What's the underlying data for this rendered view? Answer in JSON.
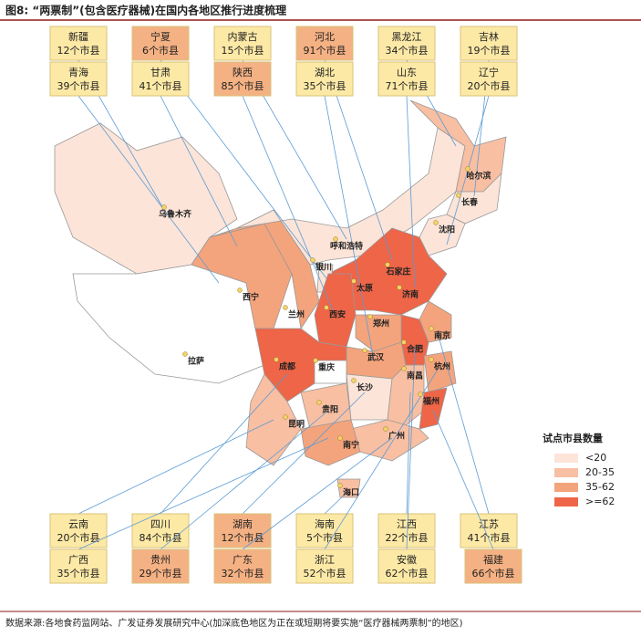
{
  "title": "图8: “两票制”(包含医疗器械)在国内各地区推行进度梳理",
  "top_boxes": [
    [
      {
        "name": "新疆",
        "count": "12个市县",
        "color": "#fde9a6"
      },
      {
        "name": "宁夏",
        "count": "6个市县",
        "color": "#f4b183"
      },
      {
        "name": "内蒙古",
        "count": "15个市县",
        "color": "#fde9a6"
      },
      {
        "name": "河北",
        "count": "91个市县",
        "color": "#f4b183"
      },
      {
        "name": "黑龙江",
        "count": "34个市县",
        "color": "#fde9a6"
      },
      {
        "name": "吉林",
        "count": "19个市县",
        "color": "#fde9a6"
      }
    ],
    [
      {
        "name": "青海",
        "count": "39个市县",
        "color": "#fde9a6"
      },
      {
        "name": "甘肃",
        "count": "41个市县",
        "color": "#fde9a6"
      },
      {
        "name": "陕西",
        "count": "85个市县",
        "color": "#f4b183"
      },
      {
        "name": "湖北",
        "count": "35个市县",
        "color": "#fde9a6"
      },
      {
        "name": "山东",
        "count": "71个市县",
        "color": "#fde9a6"
      },
      {
        "name": "辽宁",
        "count": "20个市县",
        "color": "#fde9a6"
      }
    ]
  ],
  "bottom_boxes": [
    [
      {
        "name": "云南",
        "count": "20个市县",
        "color": "#fde9a6"
      },
      {
        "name": "四川",
        "count": "84个市县",
        "color": "#fde9a6"
      },
      {
        "name": "湖南",
        "count": "12个市县",
        "color": "#f4b183"
      },
      {
        "name": "海南",
        "count": "5个市县",
        "color": "#fde9a6"
      },
      {
        "name": "江西",
        "count": "22个市县",
        "color": "#fde9a6"
      },
      {
        "name": "江苏",
        "count": "41个市县",
        "color": "#fde9a6"
      }
    ],
    [
      {
        "name": "广西",
        "count": "35个市县",
        "color": "#fde9a6"
      },
      {
        "name": "贵州",
        "count": "29个市县",
        "color": "#f4b183"
      },
      {
        "name": "广东",
        "count": "32个市县",
        "color": "#f4b183"
      },
      {
        "name": "浙江",
        "count": "52个市县",
        "color": "#fde9a6"
      },
      {
        "name": "安徽",
        "count": "62个市县",
        "color": "#fde9a6"
      },
      {
        "name": "福建",
        "count": "66个市县",
        "color": "#f4b183"
      }
    ]
  ],
  "cities": [
    "乌鲁木齐",
    "哈尔滨",
    "长春",
    "沈阳",
    "呼和浩特",
    "银川",
    "石家庄",
    "太原",
    "济南",
    "西宁",
    "兰州",
    "西安",
    "郑州",
    "南京",
    "合肥",
    "拉萨",
    "成都",
    "重庆",
    "武汉",
    "杭州",
    "南昌",
    "长沙",
    "福州",
    "贵阳",
    "昆明",
    "广州",
    "南宁",
    "海口"
  ],
  "legend": {
    "title": "试点市县数量",
    "items": [
      {
        "label": "<20",
        "color": "#fce4d8"
      },
      {
        "label": "20-35",
        "color": "#f8bfa2"
      },
      {
        "label": "35-62",
        "color": "#f4a47c"
      },
      {
        "label": ">=62",
        "color": "#ee6548"
      }
    ]
  },
  "source": "数据来源:各地食药监网站、广发证券发展研究中心(加深底色地区为正在或短期将要实施“医疗器械两票制”的地区)"
}
